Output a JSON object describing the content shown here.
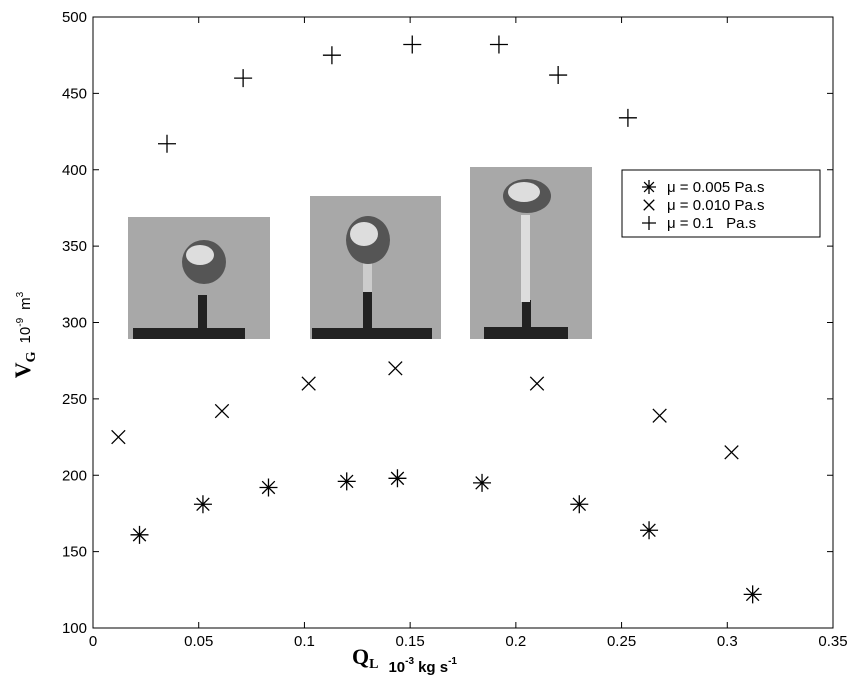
{
  "chart_data": {
    "type": "scatter",
    "xlabel": {
      "symbol": "Q",
      "subscript": "L",
      "unit": "10",
      "unit_exp": "-3",
      "unit_rest": "kg s",
      "unit_rest_exp": "-1"
    },
    "ylabel": {
      "symbol": "V",
      "subscript": "G",
      "unit": "10",
      "unit_exp": "-9",
      "unit_rest": "m",
      "unit_rest_exp": "3"
    },
    "xlim": [
      0,
      0.35
    ],
    "xticks": [
      0,
      0.05,
      0.1,
      0.15,
      0.2,
      0.25,
      0.3,
      0.35
    ],
    "ylim": [
      100,
      500
    ],
    "yticks": [
      100,
      150,
      200,
      250,
      300,
      350,
      400,
      450,
      500
    ],
    "grid": false,
    "legend": "upper right",
    "series": [
      {
        "name": "μ = 0.005 Pa.s",
        "marker": "asterisk",
        "color": "#000000",
        "x": [
          0.022,
          0.052,
          0.083,
          0.12,
          0.144,
          0.184,
          0.23,
          0.263,
          0.312
        ],
        "values": [
          161,
          181,
          192,
          196,
          198,
          195,
          181,
          164,
          122
        ]
      },
      {
        "name": "μ = 0.010 Pa.s",
        "marker": "x",
        "color": "#000000",
        "x": [
          0.012,
          0.061,
          0.102,
          0.143,
          0.21,
          0.268,
          0.302
        ],
        "values": [
          225,
          242,
          260,
          270,
          260,
          239,
          215
        ]
      },
      {
        "name": "μ = 0.1   Pa.s",
        "marker": "plus",
        "color": "#000000",
        "x": [
          0.035,
          0.071,
          0.113,
          0.151,
          0.192,
          0.22,
          0.253
        ],
        "values": [
          417,
          460,
          475,
          482,
          482,
          462,
          434
        ]
      }
    ]
  }
}
